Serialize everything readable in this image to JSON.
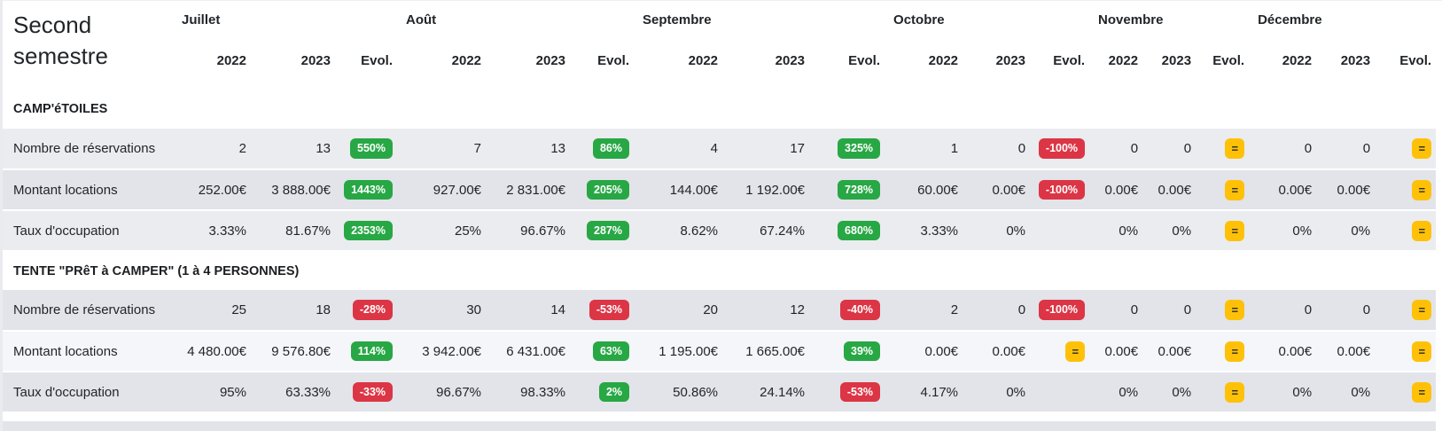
{
  "title": "Second semestre",
  "header": {
    "months": [
      "Juillet",
      "Août",
      "Septembre",
      "Octobre",
      "Novembre",
      "Décembre"
    ],
    "sub_columns": [
      "2022",
      "2023",
      "Evol."
    ]
  },
  "badge_colors": {
    "up": "#28a745",
    "down": "#dc3545",
    "equal": "#ffc107"
  },
  "sections": [
    {
      "name": "CAMP'éTOILES",
      "rows": [
        {
          "label": "Nombre de réservations",
          "months": [
            {
              "y2022": "2",
              "y2023": "13",
              "evol": "550%",
              "trend": "up"
            },
            {
              "y2022": "7",
              "y2023": "13",
              "evol": "86%",
              "trend": "up"
            },
            {
              "y2022": "4",
              "y2023": "17",
              "evol": "325%",
              "trend": "up"
            },
            {
              "y2022": "1",
              "y2023": "0",
              "evol": "-100%",
              "trend": "down"
            },
            {
              "y2022": "0",
              "y2023": "0",
              "evol": "=",
              "trend": "equal"
            },
            {
              "y2022": "0",
              "y2023": "0",
              "evol": "=",
              "trend": "equal"
            }
          ]
        },
        {
          "label": "Montant locations",
          "months": [
            {
              "y2022": "252.00€",
              "y2023": "3 888.00€",
              "evol": "1443%",
              "trend": "up"
            },
            {
              "y2022": "927.00€",
              "y2023": "2 831.00€",
              "evol": "205%",
              "trend": "up"
            },
            {
              "y2022": "144.00€",
              "y2023": "1 192.00€",
              "evol": "728%",
              "trend": "up"
            },
            {
              "y2022": "60.00€",
              "y2023": "0.00€",
              "evol": "-100%",
              "trend": "down"
            },
            {
              "y2022": "0.00€",
              "y2023": "0.00€",
              "evol": "=",
              "trend": "equal"
            },
            {
              "y2022": "0.00€",
              "y2023": "0.00€",
              "evol": "=",
              "trend": "equal"
            }
          ]
        },
        {
          "label": "Taux d'occupation",
          "months": [
            {
              "y2022": "3.33%",
              "y2023": "81.67%",
              "evol": "2353%",
              "trend": "up"
            },
            {
              "y2022": "25%",
              "y2023": "96.67%",
              "evol": "287%",
              "trend": "up"
            },
            {
              "y2022": "8.62%",
              "y2023": "67.24%",
              "evol": "680%",
              "trend": "up"
            },
            {
              "y2022": "3.33%",
              "y2023": "0%",
              "evol": null,
              "trend": null
            },
            {
              "y2022": "0%",
              "y2023": "0%",
              "evol": "=",
              "trend": "equal"
            },
            {
              "y2022": "0%",
              "y2023": "0%",
              "evol": "=",
              "trend": "equal"
            }
          ]
        }
      ]
    },
    {
      "name": "TENTE \"PRêT à CAMPER\" (1 à 4 PERSONNES)",
      "rows": [
        {
          "label": "Nombre de réservations",
          "months": [
            {
              "y2022": "25",
              "y2023": "18",
              "evol": "-28%",
              "trend": "down"
            },
            {
              "y2022": "30",
              "y2023": "14",
              "evol": "-53%",
              "trend": "down"
            },
            {
              "y2022": "20",
              "y2023": "12",
              "evol": "-40%",
              "trend": "down"
            },
            {
              "y2022": "2",
              "y2023": "0",
              "evol": "-100%",
              "trend": "down"
            },
            {
              "y2022": "0",
              "y2023": "0",
              "evol": "=",
              "trend": "equal"
            },
            {
              "y2022": "0",
              "y2023": "0",
              "evol": "=",
              "trend": "equal"
            }
          ]
        },
        {
          "label": "Montant locations",
          "months": [
            {
              "y2022": "4 480.00€",
              "y2023": "9 576.80€",
              "evol": "114%",
              "trend": "up"
            },
            {
              "y2022": "3 942.00€",
              "y2023": "6 431.00€",
              "evol": "63%",
              "trend": "up"
            },
            {
              "y2022": "1 195.00€",
              "y2023": "1 665.00€",
              "evol": "39%",
              "trend": "up"
            },
            {
              "y2022": "0.00€",
              "y2023": "0.00€",
              "evol": "=",
              "trend": "equal"
            },
            {
              "y2022": "0.00€",
              "y2023": "0.00€",
              "evol": "=",
              "trend": "equal"
            },
            {
              "y2022": "0.00€",
              "y2023": "0.00€",
              "evol": "=",
              "trend": "equal"
            }
          ]
        },
        {
          "label": "Taux d'occupation",
          "months": [
            {
              "y2022": "95%",
              "y2023": "63.33%",
              "evol": "-33%",
              "trend": "down"
            },
            {
              "y2022": "96.67%",
              "y2023": "98.33%",
              "evol": "2%",
              "trend": "up"
            },
            {
              "y2022": "50.86%",
              "y2023": "24.14%",
              "evol": "-53%",
              "trend": "down"
            },
            {
              "y2022": "4.17%",
              "y2023": "0%",
              "evol": null,
              "trend": null
            },
            {
              "y2022": "0%",
              "y2023": "0%",
              "evol": "=",
              "trend": "equal"
            },
            {
              "y2022": "0%",
              "y2023": "0%",
              "evol": "=",
              "trend": "equal"
            }
          ]
        }
      ]
    }
  ]
}
